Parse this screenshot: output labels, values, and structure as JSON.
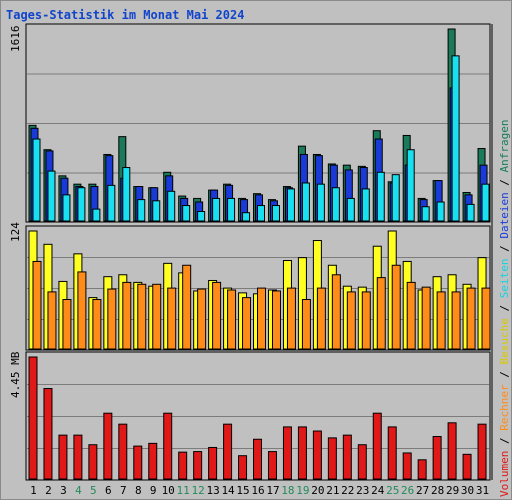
{
  "title": "Tages-Statistik im Monat Mai 2024",
  "colors": {
    "background": "#c0c0c0",
    "title": "#1144cc",
    "weekday": "#000000",
    "weekend": "#238a5a",
    "anfragen": "#1a7a5a",
    "dateien": "#1a3ad8",
    "seiten": "#18e0f0",
    "besuche": "#ffff22",
    "rechner": "#ff8c18",
    "volumen": "#e01818"
  },
  "right_legend": [
    {
      "text": "Volumen",
      "color": "#e01818"
    },
    {
      "text": " / ",
      "color": "#000000"
    },
    {
      "text": "Rechner",
      "color": "#ff8c18"
    },
    {
      "text": " / ",
      "color": "#000000"
    },
    {
      "text": "Besuche",
      "color": "#d8c800"
    },
    {
      "text": " / ",
      "color": "#000000"
    },
    {
      "text": "Seiten",
      "color": "#18d0e0"
    },
    {
      "text": " / ",
      "color": "#000000"
    },
    {
      "text": "Dateien",
      "color": "#1a3ad8"
    },
    {
      "text": " / ",
      "color": "#000000"
    },
    {
      "text": "Anfragen",
      "color": "#1a7a5a"
    }
  ],
  "chart_data": [
    {
      "type": "bar",
      "panel": "top",
      "max_label": "1616",
      "ymax": 1616,
      "x": [
        1,
        2,
        3,
        4,
        5,
        6,
        7,
        8,
        9,
        10,
        11,
        12,
        13,
        14,
        15,
        16,
        17,
        18,
        19,
        20,
        21,
        22,
        23,
        24,
        25,
        26,
        27,
        28,
        29,
        30,
        31
      ],
      "weekend_days": [
        4,
        5,
        11,
        12,
        18,
        19,
        25,
        26
      ],
      "series": [
        {
          "name": "Anfragen",
          "values": [
            805,
            600,
            380,
            310,
            310,
            560,
            710,
            290,
            280,
            410,
            210,
            190,
            260,
            310,
            190,
            230,
            180,
            290,
            630,
            560,
            480,
            470,
            460,
            760,
            330,
            720,
            190,
            340,
            1616,
            240,
            610
          ]
        },
        {
          "name": "Dateien",
          "values": [
            780,
            590,
            360,
            290,
            290,
            550,
            360,
            290,
            280,
            380,
            190,
            160,
            260,
            300,
            180,
            220,
            170,
            280,
            560,
            550,
            470,
            430,
            450,
            690,
            320,
            470,
            180,
            340,
            1120,
            220,
            470
          ]
        },
        {
          "name": "Seiten",
          "values": [
            690,
            420,
            220,
            280,
            100,
            300,
            450,
            180,
            170,
            250,
            130,
            80,
            190,
            190,
            70,
            130,
            130,
            270,
            320,
            310,
            280,
            190,
            270,
            410,
            390,
            600,
            120,
            160,
            1390,
            140,
            310
          ]
        }
      ]
    },
    {
      "type": "bar",
      "panel": "middle",
      "max_label": "124",
      "ymax": 124,
      "x": [
        1,
        2,
        3,
        4,
        5,
        6,
        7,
        8,
        9,
        10,
        11,
        12,
        13,
        14,
        15,
        16,
        17,
        18,
        19,
        20,
        21,
        22,
        23,
        24,
        25,
        26,
        27,
        28,
        29,
        30,
        31
      ],
      "series": [
        {
          "name": "Besuche",
          "values": [
            124,
            110,
            71,
            100,
            54,
            76,
            78,
            70,
            66,
            90,
            80,
            61,
            72,
            64,
            59,
            58,
            62,
            93,
            96,
            114,
            88,
            66,
            65,
            108,
            124,
            92,
            62,
            76,
            78,
            68,
            96
          ]
        },
        {
          "name": "Rechner",
          "values": [
            92,
            60,
            52,
            81,
            52,
            63,
            70,
            68,
            68,
            64,
            88,
            63,
            70,
            62,
            54,
            64,
            61,
            64,
            52,
            64,
            78,
            60,
            60,
            75,
            88,
            70,
            65,
            60,
            60,
            64,
            64
          ]
        }
      ]
    },
    {
      "type": "bar",
      "panel": "bottom",
      "max_label": "4.45 MB",
      "ymax": 4.45,
      "unit": "MB",
      "x": [
        1,
        2,
        3,
        4,
        5,
        6,
        7,
        8,
        9,
        10,
        11,
        12,
        13,
        14,
        15,
        16,
        17,
        18,
        19,
        20,
        21,
        22,
        23,
        24,
        25,
        26,
        27,
        28,
        29,
        30,
        31
      ],
      "series": [
        {
          "name": "Volumen",
          "values": [
            4.45,
            3.3,
            1.6,
            1.6,
            1.25,
            2.4,
            2.0,
            1.2,
            1.3,
            2.4,
            0.98,
            1.0,
            1.15,
            2.0,
            0.85,
            1.45,
            1.0,
            1.9,
            1.9,
            1.75,
            1.5,
            1.6,
            1.25,
            2.4,
            1.9,
            0.95,
            0.7,
            1.55,
            2.05,
            0.9,
            2.0
          ]
        }
      ]
    }
  ]
}
